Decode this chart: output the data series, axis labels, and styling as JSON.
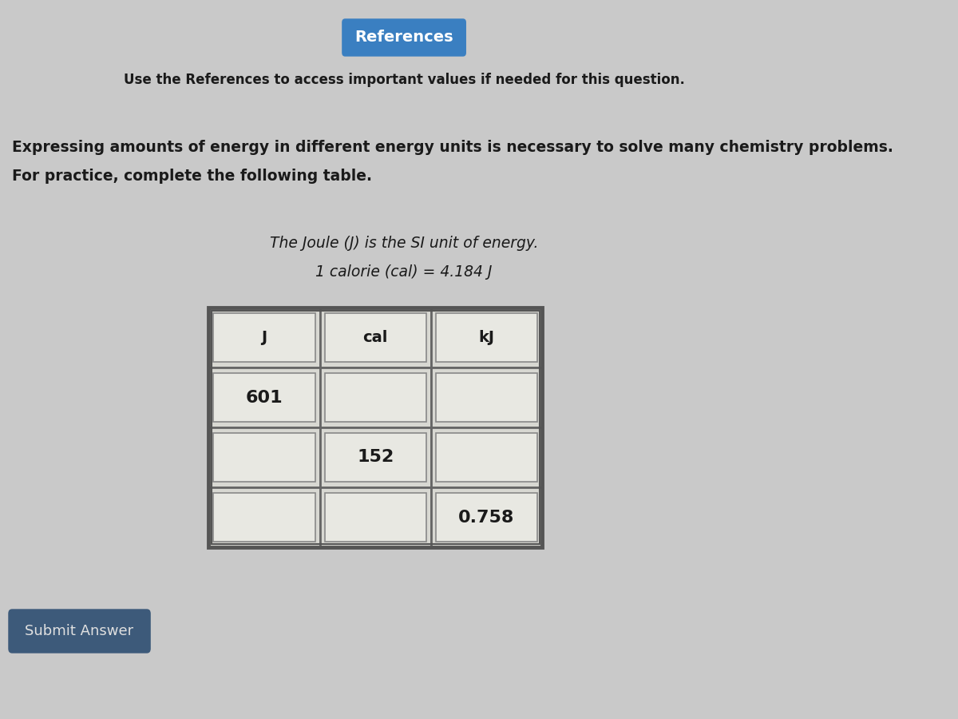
{
  "background_color": "#c9c9c9",
  "references_btn_color": "#3a7fc1",
  "references_btn_text": "References",
  "references_btn_text_color": "#ffffff",
  "subtitle_text": "Use the References to access important values if needed for this question.",
  "main_text_line1": "Expressing amounts of energy in different energy units is necessary to solve many chemistry problems.",
  "main_text_line2": "For practice, complete the following table.",
  "info_line1": "The Joule (J) is the SI unit of energy.",
  "info_line2": "1 calorie (cal) = 4.184 J",
  "table_headers": [
    "J",
    "cal",
    "kJ"
  ],
  "table_data": [
    [
      "601",
      "",
      ""
    ],
    [
      "",
      "152",
      ""
    ],
    [
      "",
      "",
      "0.758"
    ]
  ],
  "cell_bg_all": "#deded8",
  "inner_box_bg": "#ebebе4",
  "submit_btn_color": "#3d5a7a",
  "submit_btn_text": "Submit Answer",
  "submit_btn_text_color": "#e0e0e0",
  "table_outer_border_color": "#666666",
  "table_inner_border_color": "#888888",
  "inner_rect_border_color": "#888888"
}
